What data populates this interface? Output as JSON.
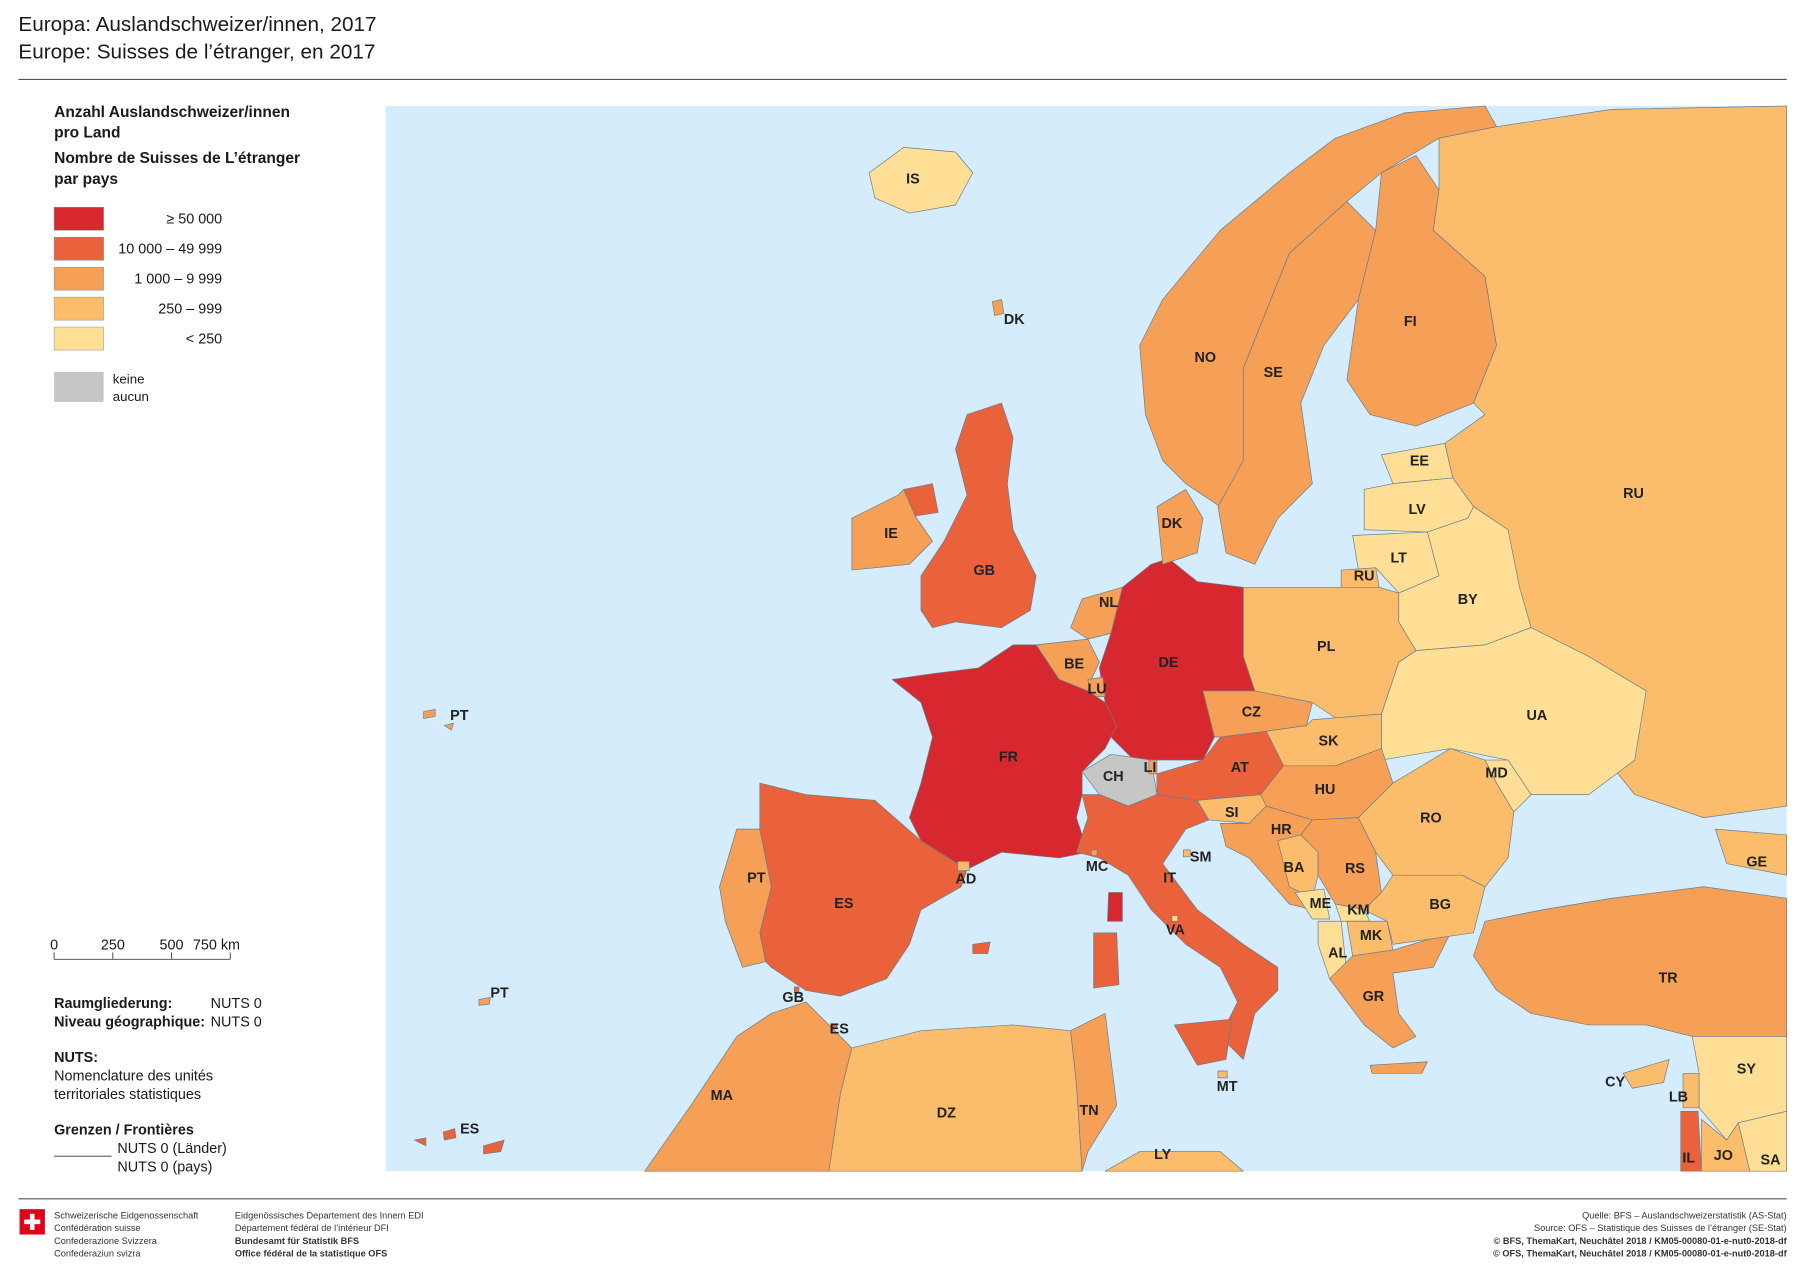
{
  "header": {
    "title_de": "Europa: Auslandschweizer/innen, 2017",
    "title_fr": "Europe: Suisses de l’étranger, en 2017"
  },
  "legend": {
    "title": [
      "Anzahl Auslandschweizer/innen",
      "pro Land",
      "Nombre de Suisses de L’étranger",
      "par pays"
    ],
    "classes": [
      {
        "label": "≥ 50 000",
        "color": "#d7282f"
      },
      {
        "label": "10 000 – 49 999",
        "color": "#ea623c"
      },
      {
        "label": "1 000 – 9 999",
        "color": "#f59f57"
      },
      {
        "label": "250 – 999",
        "color": "#fbbd6b"
      },
      {
        "label": "< 250",
        "color": "#fedf95"
      }
    ],
    "none": {
      "label": [
        "keine",
        "aucun"
      ],
      "color": "#c6c6c6"
    }
  },
  "scale": {
    "ticks": [
      0,
      250,
      500,
      {
        "value": 750,
        "label": "750 km"
      }
    ]
  },
  "notes": {
    "levels": [
      [
        "Raumgliederung:",
        "NUTS 0"
      ],
      [
        "Niveau géographique:",
        "NUTS 0"
      ]
    ],
    "nuts": {
      "title": "NUTS:",
      "lines": [
        "Nomenclature des unités",
        "territoriales statistiques"
      ]
    },
    "borders": {
      "title": "Grenzen / Frontières",
      "lines": [
        "NUTS 0 (Länder)",
        "NUTS 0 (pays)"
      ]
    }
  },
  "footer": {
    "left": [
      "Schweizerische Eidgenossenschaft",
      "Confédération suisse",
      "Confederazione Svizzera",
      "Confederaziun svizra"
    ],
    "middle": [
      "Eidgenössisches Departement des Innern EDI",
      "Département fédéral de l’intérieur DFI",
      "Bundesamt für Statistik BFS",
      "Office fédéral de la statistique OFS"
    ],
    "right": [
      "Quelle: BFS – Auslandschweizerstatistik (AS-Stat)",
      "Source: OFS – Statistique des Suisses de l’étranger (SE-Stat)",
      "© BFS, ThemaKart, Neuchâtel 2018 / KM05-00080-01-e-nut0-2018-df",
      "© OFS, ThemaKart, Neuchâtel 2018 / KM05-00080-01-e-nut0-2018-df"
    ]
  },
  "regions": [
    {
      "code": "IS",
      "class": 4
    },
    {
      "code": "DK",
      "class": 2
    },
    {
      "code": "NO",
      "class": 2
    },
    {
      "code": "SE",
      "class": 2
    },
    {
      "code": "FI",
      "class": 2
    },
    {
      "code": "RU",
      "class": 3
    },
    {
      "code": "EE",
      "class": 4
    },
    {
      "code": "LV",
      "class": 4
    },
    {
      "code": "LT",
      "class": 4
    },
    {
      "code": "RU",
      "class": 3
    },
    {
      "code": "BY",
      "class": 4
    },
    {
      "code": "UA",
      "class": 4
    },
    {
      "code": "PL",
      "class": 3
    },
    {
      "code": "DE",
      "class": 0
    },
    {
      "code": "DK",
      "class": 2
    },
    {
      "code": "NL",
      "class": 2
    },
    {
      "code": "BE",
      "class": 2
    },
    {
      "code": "LU",
      "class": 2
    },
    {
      "code": "FR",
      "class": 0
    },
    {
      "code": "CH",
      "class": 5
    },
    {
      "code": "LI",
      "class": 2
    },
    {
      "code": "AT",
      "class": 1
    },
    {
      "code": "CZ",
      "class": 2
    },
    {
      "code": "SK",
      "class": 3
    },
    {
      "code": "HU",
      "class": 2
    },
    {
      "code": "SI",
      "class": 3
    },
    {
      "code": "HR",
      "class": 2
    },
    {
      "code": "BA",
      "class": 3
    },
    {
      "code": "RS",
      "class": 2
    },
    {
      "code": "ME",
      "class": 4
    },
    {
      "code": "KM",
      "class": 4
    },
    {
      "code": "AL",
      "class": 4
    },
    {
      "code": "MK",
      "class": 3
    },
    {
      "code": "GR",
      "class": 2
    },
    {
      "code": "BG",
      "class": 3
    },
    {
      "code": "RO",
      "class": 3
    },
    {
      "code": "MD",
      "class": 4
    },
    {
      "code": "IT",
      "class": 1
    },
    {
      "code": "SM",
      "class": 3
    },
    {
      "code": "VA",
      "class": 4
    },
    {
      "code": "MC",
      "class": 2
    },
    {
      "code": "MT",
      "class": 3
    },
    {
      "code": "ES",
      "class": 1
    },
    {
      "code": "PT",
      "class": 2
    },
    {
      "code": "AD",
      "class": 3
    },
    {
      "code": "GB",
      "class": 1
    },
    {
      "code": "IE",
      "class": 2
    },
    {
      "code": "TR",
      "class": 2
    },
    {
      "code": "GE",
      "class": 3
    },
    {
      "code": "CY",
      "class": 3
    },
    {
      "code": "LB",
      "class": 3
    },
    {
      "code": "SY",
      "class": 4
    },
    {
      "code": "IL",
      "class": 1
    },
    {
      "code": "JO",
      "class": 3
    },
    {
      "code": "SA",
      "class": 4
    },
    {
      "code": "MA",
      "class": 2
    },
    {
      "code": "DZ",
      "class": 3
    },
    {
      "code": "TN",
      "class": 2
    },
    {
      "code": "LY",
      "class": 3
    },
    {
      "code": "PT",
      "class": 2
    },
    {
      "code": "PT",
      "class": 2
    },
    {
      "code": "ES",
      "class": 1
    },
    {
      "code": "GB",
      "class": 1
    },
    {
      "code": "ES",
      "class": 1
    }
  ]
}
